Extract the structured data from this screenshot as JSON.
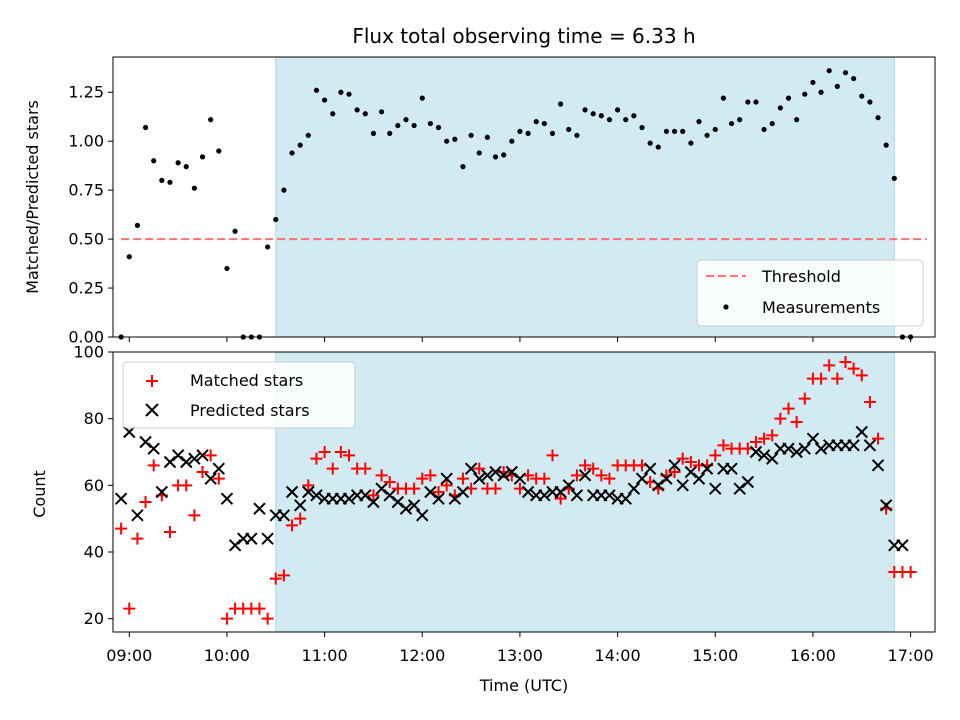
{
  "title": "Flux total observing time = 6.33 h",
  "colors": {
    "shade": "#add8e6",
    "threshold": "#ff6f6f",
    "measurements": "#000000",
    "matched": "#ff0000",
    "predicted": "#000000"
  },
  "chart_data": [
    {
      "type": "scatter",
      "ylabel": "Matched/Predicted stars",
      "xlim": [
        "08:50",
        "17:15"
      ],
      "ylim": [
        0,
        1.43
      ],
      "y_ticks": [
        "0.00",
        "0.25",
        "0.50",
        "0.75",
        "1.00",
        "1.25"
      ],
      "shaded_span": [
        "10:30",
        "16:50"
      ],
      "legend": {
        "placement": "lower right",
        "entries": [
          "Threshold",
          "Measurements"
        ]
      },
      "threshold": {
        "name": "Threshold",
        "y": 0.5,
        "x_start": "08:55",
        "x_end": "17:10",
        "style": "dashed"
      },
      "series": [
        {
          "name": "Measurements",
          "x": [
            "08:55",
            "09:00",
            "09:05",
            "09:10",
            "09:15",
            "09:20",
            "09:25",
            "09:30",
            "09:35",
            "09:40",
            "09:45",
            "09:50",
            "09:55",
            "10:00",
            "10:05",
            "10:10",
            "10:15",
            "10:20",
            "10:25",
            "10:30",
            "10:35",
            "10:40",
            "10:45",
            "10:50",
            "10:55",
            "11:00",
            "11:05",
            "11:10",
            "11:15",
            "11:20",
            "11:25",
            "11:30",
            "11:35",
            "11:40",
            "11:45",
            "11:50",
            "11:55",
            "12:00",
            "12:05",
            "12:10",
            "12:15",
            "12:20",
            "12:25",
            "12:30",
            "12:35",
            "12:40",
            "12:45",
            "12:50",
            "12:55",
            "13:00",
            "13:05",
            "13:10",
            "13:15",
            "13:20",
            "13:25",
            "13:30",
            "13:35",
            "13:40",
            "13:45",
            "13:50",
            "13:55",
            "14:00",
            "14:05",
            "14:10",
            "14:15",
            "14:20",
            "14:25",
            "14:30",
            "14:35",
            "14:40",
            "14:45",
            "14:50",
            "14:55",
            "15:00",
            "15:05",
            "15:10",
            "15:15",
            "15:20",
            "15:25",
            "15:30",
            "15:35",
            "15:40",
            "15:45",
            "15:50",
            "15:55",
            "16:00",
            "16:05",
            "16:10",
            "16:15",
            "16:20",
            "16:25",
            "16:30",
            "16:35",
            "16:40",
            "16:45",
            "16:50",
            "16:55",
            "17:00"
          ],
          "y": [
            0.0,
            0.41,
            0.57,
            1.07,
            0.9,
            0.8,
            0.79,
            0.89,
            0.87,
            0.76,
            0.92,
            1.11,
            0.95,
            0.35,
            0.54,
            0.0,
            0.0,
            0.0,
            0.46,
            0.6,
            0.75,
            0.94,
            0.98,
            1.03,
            1.26,
            1.21,
            1.14,
            1.25,
            1.24,
            1.16,
            1.14,
            1.04,
            1.15,
            1.04,
            1.08,
            1.11,
            1.08,
            1.22,
            1.09,
            1.07,
            1.0,
            1.01,
            0.87,
            1.03,
            0.94,
            1.02,
            0.92,
            0.93,
            1.0,
            1.05,
            1.04,
            1.1,
            1.09,
            1.04,
            1.19,
            1.06,
            1.03,
            1.16,
            1.14,
            1.13,
            1.11,
            1.16,
            1.11,
            1.13,
            1.07,
            0.99,
            0.97,
            1.05,
            1.05,
            1.05,
            0.99,
            1.1,
            1.03,
            1.06,
            1.22,
            1.09,
            1.11,
            1.2,
            1.2,
            1.06,
            1.09,
            1.17,
            1.22,
            1.11,
            1.24,
            1.3,
            1.25,
            1.36,
            1.28,
            1.35,
            1.32,
            1.23,
            1.2,
            1.12,
            0.98,
            0.81,
            0.0,
            0.0
          ]
        }
      ]
    },
    {
      "type": "scatter",
      "xlabel": "Time (UTC)",
      "ylabel": "Count",
      "xlim": [
        "08:50",
        "17:15"
      ],
      "ylim": [
        16,
        100
      ],
      "y_ticks": [
        "20",
        "40",
        "60",
        "80",
        "100"
      ],
      "x_ticks": [
        "09:00",
        "10:00",
        "11:00",
        "12:00",
        "13:00",
        "14:00",
        "15:00",
        "16:00",
        "17:00"
      ],
      "shaded_span": [
        "10:30",
        "16:50"
      ],
      "legend": {
        "placement": "upper left",
        "entries": [
          "Matched stars",
          "Predicted stars"
        ]
      },
      "series": [
        {
          "name": "Matched stars",
          "marker": "+",
          "x": [
            "08:55",
            "09:00",
            "09:05",
            "09:10",
            "09:15",
            "09:20",
            "09:25",
            "09:30",
            "09:35",
            "09:40",
            "09:45",
            "09:50",
            "09:55",
            "10:00",
            "10:05",
            "10:10",
            "10:15",
            "10:20",
            "10:25",
            "10:30",
            "10:35",
            "10:40",
            "10:45",
            "10:50",
            "10:55",
            "11:00",
            "11:05",
            "11:10",
            "11:15",
            "11:20",
            "11:25",
            "11:30",
            "11:35",
            "11:40",
            "11:45",
            "11:50",
            "11:55",
            "12:00",
            "12:05",
            "12:10",
            "12:15",
            "12:20",
            "12:25",
            "12:30",
            "12:35",
            "12:40",
            "12:45",
            "12:50",
            "12:55",
            "13:00",
            "13:05",
            "13:10",
            "13:15",
            "13:20",
            "13:25",
            "13:30",
            "13:35",
            "13:40",
            "13:45",
            "13:50",
            "13:55",
            "14:00",
            "14:05",
            "14:10",
            "14:15",
            "14:20",
            "14:25",
            "14:30",
            "14:35",
            "14:40",
            "14:45",
            "14:50",
            "14:55",
            "15:00",
            "15:05",
            "15:10",
            "15:15",
            "15:20",
            "15:25",
            "15:30",
            "15:35",
            "15:40",
            "15:45",
            "15:50",
            "15:55",
            "16:00",
            "16:05",
            "16:10",
            "16:15",
            "16:20",
            "16:25",
            "16:30",
            "16:35",
            "16:40",
            "16:45",
            "16:50",
            "16:55",
            "17:00"
          ],
          "y": [
            47,
            23,
            44,
            55,
            66,
            57,
            46,
            60,
            60,
            51,
            64,
            69,
            62,
            20,
            23,
            23,
            23,
            23,
            20,
            32,
            33,
            48,
            50,
            60,
            68,
            70,
            65,
            70,
            69,
            65,
            65,
            57,
            63,
            61,
            59,
            59,
            59,
            62,
            63,
            58,
            60,
            57,
            62,
            59,
            65,
            59,
            59,
            64,
            63,
            59,
            63,
            62,
            62,
            69,
            56,
            59,
            63,
            66,
            65,
            63,
            62,
            66,
            66,
            66,
            66,
            61,
            59,
            63,
            64,
            68,
            67,
            66,
            66,
            69,
            72,
            71,
            71,
            71,
            73,
            74,
            75,
            80,
            83,
            79,
            86,
            92,
            92,
            96,
            92,
            97,
            95,
            93,
            85,
            74,
            53,
            34,
            34,
            34
          ]
        },
        {
          "name": "Predicted stars",
          "marker": "x",
          "x": [
            "08:55",
            "09:00",
            "09:05",
            "09:10",
            "09:15",
            "09:20",
            "09:25",
            "09:30",
            "09:35",
            "09:40",
            "09:45",
            "09:50",
            "09:55",
            "10:00",
            "10:05",
            "10:10",
            "10:15",
            "10:20",
            "10:25",
            "10:30",
            "10:35",
            "10:40",
            "10:45",
            "10:50",
            "10:55",
            "11:00",
            "11:05",
            "11:10",
            "11:15",
            "11:20",
            "11:25",
            "11:30",
            "11:35",
            "11:40",
            "11:45",
            "11:50",
            "11:55",
            "12:00",
            "12:05",
            "12:10",
            "12:15",
            "12:20",
            "12:25",
            "12:30",
            "12:35",
            "12:40",
            "12:45",
            "12:50",
            "12:55",
            "13:00",
            "13:05",
            "13:10",
            "13:15",
            "13:20",
            "13:25",
            "13:30",
            "13:35",
            "13:40",
            "13:45",
            "13:50",
            "13:55",
            "14:00",
            "14:05",
            "14:10",
            "14:15",
            "14:20",
            "14:25",
            "14:30",
            "14:35",
            "14:40",
            "14:45",
            "14:50",
            "14:55",
            "15:00",
            "15:05",
            "15:10",
            "15:15",
            "15:20",
            "15:25",
            "15:30",
            "15:35",
            "15:40",
            "15:45",
            "15:50",
            "15:55",
            "16:00",
            "16:05",
            "16:10",
            "16:15",
            "16:20",
            "16:25",
            "16:30",
            "16:35",
            "16:40",
            "16:45",
            "16:50",
            "16:55"
          ],
          "y": [
            56,
            76,
            51,
            73,
            71,
            58,
            67,
            69,
            67,
            68,
            69,
            62,
            65,
            56,
            42,
            44,
            44,
            53,
            44,
            51,
            51,
            58,
            54,
            58,
            57,
            56,
            56,
            56,
            56,
            57,
            57,
            55,
            59,
            57,
            55,
            53,
            54,
            51,
            58,
            56,
            62,
            56,
            58,
            65,
            62,
            63,
            64,
            63,
            64,
            62,
            58,
            57,
            57,
            58,
            58,
            60,
            57,
            63,
            57,
            57,
            57,
            56,
            56,
            59,
            62,
            65,
            60,
            62,
            66,
            60,
            64,
            62,
            65,
            59,
            65,
            65,
            59,
            61,
            70,
            69,
            68,
            71,
            71,
            70,
            71,
            74,
            71,
            72,
            72,
            72,
            72,
            76,
            72,
            66,
            54,
            42,
            42
          ]
        }
      ]
    }
  ]
}
